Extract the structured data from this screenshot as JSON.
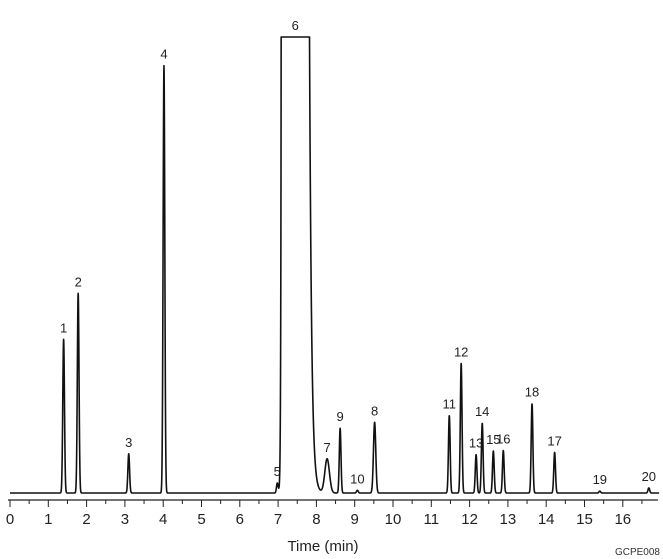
{
  "chart_data": {
    "type": "line",
    "title": "",
    "xlabel": "Time (min)",
    "ylabel": "",
    "xlim": [
      0,
      17
    ],
    "x_ticks": [
      0,
      1,
      2,
      3,
      4,
      5,
      6,
      7,
      8,
      9,
      10,
      11,
      12,
      13,
      14,
      15,
      16
    ],
    "grid": false,
    "legend": "none",
    "image_code": "GCPE008",
    "line_color": "#111111",
    "peaks": [
      {
        "label": "1",
        "rt": 1.4,
        "height": 0.337
      },
      {
        "label": "2",
        "rt": 1.78,
        "height": 0.438
      },
      {
        "label": "3",
        "rt": 3.1,
        "height": 0.086
      },
      {
        "label": "4",
        "rt": 4.02,
        "height": 0.937
      },
      {
        "label": "5",
        "rt": 6.98,
        "height": 0.022
      },
      {
        "label": "6",
        "rt": 7.45,
        "height": 1.0,
        "flat_top": true,
        "start": 7.08,
        "end": 7.82
      },
      {
        "label": "7",
        "rt": 8.28,
        "height": 0.075
      },
      {
        "label": "8",
        "rt": 9.52,
        "height": 0.155
      },
      {
        "label": "9",
        "rt": 8.62,
        "height": 0.142
      },
      {
        "label": "10",
        "rt": 9.07,
        "height": 0.006
      },
      {
        "label": "11",
        "rt": 11.47,
        "height": 0.17
      },
      {
        "label": "12",
        "rt": 11.78,
        "height": 0.284
      },
      {
        "label": "13",
        "rt": 12.17,
        "height": 0.084
      },
      {
        "label": "14",
        "rt": 12.33,
        "height": 0.153
      },
      {
        "label": "15",
        "rt": 12.62,
        "height": 0.092
      },
      {
        "label": "16",
        "rt": 12.88,
        "height": 0.093
      },
      {
        "label": "17",
        "rt": 14.22,
        "height": 0.089
      },
      {
        "label": "18",
        "rt": 13.63,
        "height": 0.196
      },
      {
        "label": "19",
        "rt": 15.4,
        "height": 0.004
      },
      {
        "label": "20",
        "rt": 16.68,
        "height": 0.011
      }
    ]
  }
}
